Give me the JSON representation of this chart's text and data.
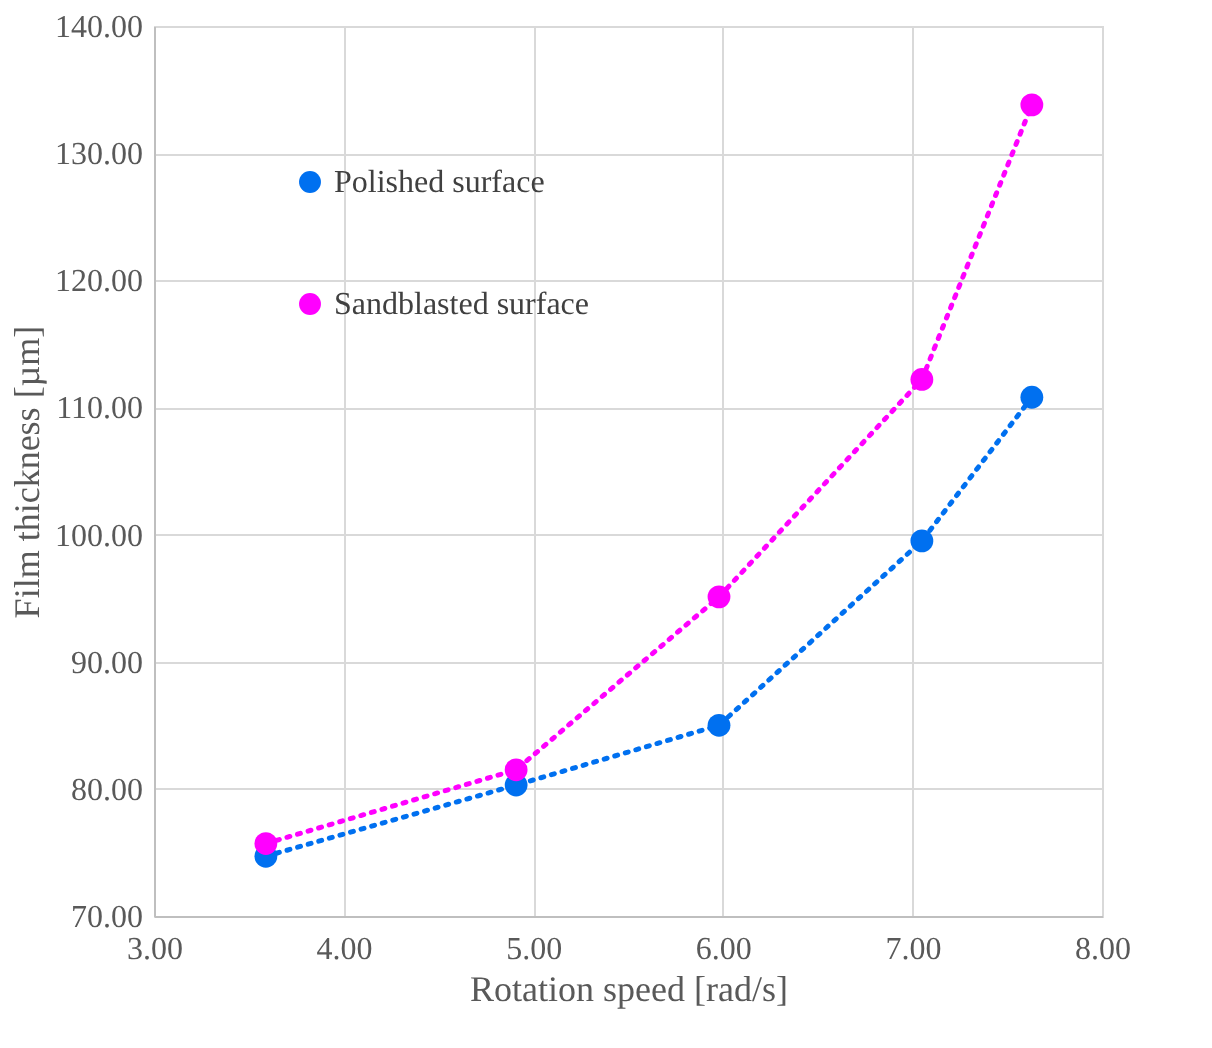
{
  "chart_data": {
    "type": "line",
    "xlabel": "Rotation speed [rad/s]",
    "ylabel": "Film thickness [µm]",
    "x": [
      3.59,
      4.91,
      5.98,
      7.05,
      7.63
    ],
    "series": [
      {
        "name": "Polished surface",
        "color": "#0070f0",
        "values": [
          74.7,
          80.3,
          85.0,
          99.5,
          110.8
        ]
      },
      {
        "name": "Sandblasted surface",
        "color": "#ff00ff",
        "values": [
          75.7,
          81.5,
          95.1,
          112.2,
          133.8
        ]
      }
    ],
    "xlim": [
      3,
      8
    ],
    "xticks": [
      {
        "value": 3,
        "label": "3.00"
      },
      {
        "value": 4,
        "label": "4.00"
      },
      {
        "value": 5,
        "label": "5.00"
      },
      {
        "value": 6,
        "label": "6.00"
      },
      {
        "value": 7,
        "label": "7.00"
      },
      {
        "value": 8,
        "label": "8.00"
      }
    ],
    "ylim": [
      70,
      140
    ],
    "yticks": [
      {
        "value": 70,
        "label": "70.00"
      },
      {
        "value": 80,
        "label": "80.00"
      },
      {
        "value": 90,
        "label": "90.00"
      },
      {
        "value": 100,
        "label": "100.00"
      },
      {
        "value": 110,
        "label": "110.00"
      },
      {
        "value": 120,
        "label": "120.00"
      },
      {
        "value": 130,
        "label": "130.00"
      },
      {
        "value": 140,
        "label": "140.00"
      }
    ],
    "grid": true,
    "legend": "top left",
    "marker": "circle",
    "line_style": "dotted"
  }
}
